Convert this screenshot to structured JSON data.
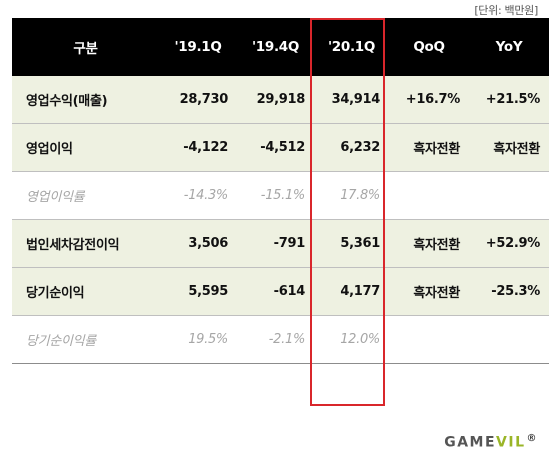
{
  "unit_label": "[단위: 백만원]",
  "header": [
    "구분",
    "'19.1Q",
    "'19.4Q",
    "'20.1Q",
    "QoQ",
    "YoY"
  ],
  "rows": [
    {
      "label": "영업수익(매출)",
      "v1": "28,730",
      "v2": "29,918",
      "v3": "34,914",
      "qoq": "+16.7%",
      "yoy": "+21.5%",
      "style": "shaded"
    },
    {
      "label": "영업이익",
      "v1": "-4,122",
      "v2": "-4,512",
      "v3": "6,232",
      "qoq": "흑자전환",
      "yoy": "흑자전환",
      "style": "shaded"
    },
    {
      "label": "영업이익률",
      "v1": "-14.3%",
      "v2": "-15.1%",
      "v3": "17.8%",
      "qoq": "",
      "yoy": "",
      "style": "muted"
    },
    {
      "label": "법인세차감전이익",
      "v1": "3,506",
      "v2": "-791",
      "v3": "5,361",
      "qoq": "흑자전환",
      "yoy": "+52.9%",
      "style": "shaded"
    },
    {
      "label": "당기순이익",
      "v1": "5,595",
      "v2": "-614",
      "v3": "4,177",
      "qoq": "흑자전환",
      "yoy": "-25.3%",
      "style": "shaded"
    },
    {
      "label": "당기순이익률",
      "v1": "19.5%",
      "v2": "-2.1%",
      "v3": "12.0%",
      "qoq": "",
      "yoy": "",
      "style": "muted"
    }
  ],
  "logo": {
    "main": "GAME",
    "accent": "VIL",
    "mark": "®"
  },
  "colors": {
    "header_bg": "#000000",
    "row_shade": "#eef1e1",
    "highlight_border": "#d9262b",
    "muted_text": "#a6a6a6",
    "logo_accent": "#9ab527"
  }
}
